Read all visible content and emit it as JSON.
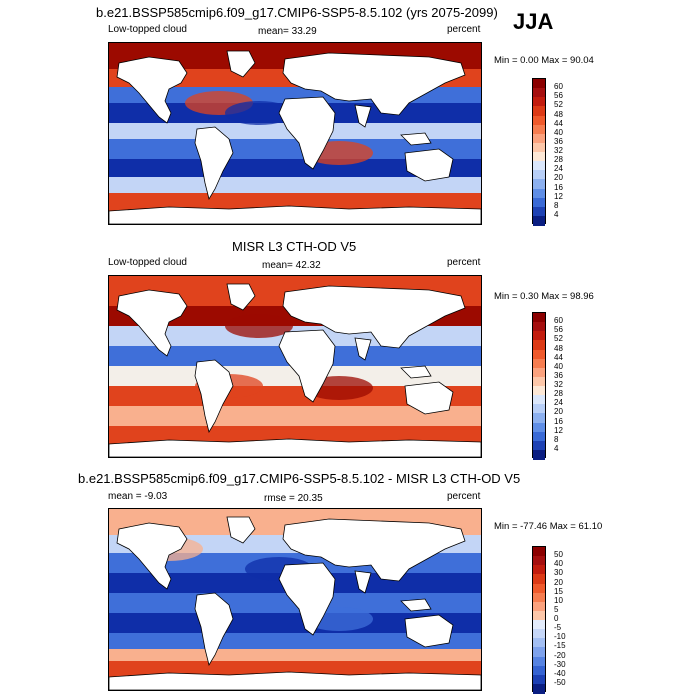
{
  "season": "JJA",
  "panels": [
    {
      "title": "b.e21.BSSP585cmip6.f09_g17.CMIP6-SSP5-8.5.102 (yrs 2075-2099)",
      "left_label": "Low-topped cloud",
      "center_label": "mean=  33.29",
      "right_label": "percent",
      "minmax": "Min =   0.00 Max =  90.04",
      "colorbar_labels": [
        "60",
        "56",
        "52",
        "48",
        "44",
        "40",
        "36",
        "32",
        "28",
        "24",
        "20",
        "16",
        "12",
        "8",
        "4"
      ],
      "colorbar_colors": [
        "#8b0000",
        "#a50f0f",
        "#c21c0e",
        "#dc3a16",
        "#ef5a2c",
        "#f67d50",
        "#fba27e",
        "#fdc7a9",
        "#fde8d6",
        "#dbe7fb",
        "#b8cff7",
        "#8cb0ef",
        "#5f8ee6",
        "#3a6ad6",
        "#1e42b4",
        "#0a1e82"
      ],
      "map_style": "model"
    },
    {
      "title": "MISR L3 CTH-OD V5",
      "left_label": "Low-topped cloud",
      "center_label": "mean=  42.32",
      "right_label": "percent",
      "minmax": "Min =   0.30 Max =  98.96",
      "colorbar_labels": [
        "60",
        "56",
        "52",
        "48",
        "44",
        "40",
        "36",
        "32",
        "28",
        "24",
        "20",
        "16",
        "12",
        "8",
        "4"
      ],
      "colorbar_colors": [
        "#8b0000",
        "#a50f0f",
        "#c21c0e",
        "#dc3a16",
        "#ef5a2c",
        "#f67d50",
        "#fba27e",
        "#fdc7a9",
        "#fde8d6",
        "#dbe7fb",
        "#b8cff7",
        "#8cb0ef",
        "#5f8ee6",
        "#3a6ad6",
        "#1e42b4",
        "#0a1e82"
      ],
      "map_style": "obs"
    },
    {
      "title": "b.e21.BSSP585cmip6.f09_g17.CMIP6-SSP5-8.5.102 - MISR L3 CTH-OD V5",
      "left_label": "mean =  -9.03",
      "center_label": "rmse =  20.35",
      "right_label": "percent",
      "minmax": "Min = -77.46 Max =  61.10",
      "colorbar_labels": [
        "50",
        "40",
        "30",
        "20",
        "15",
        "10",
        "5",
        "0",
        "-5",
        "-10",
        "-15",
        "-20",
        "-30",
        "-40",
        "-50"
      ],
      "colorbar_colors": [
        "#8b0000",
        "#a50f0f",
        "#c21c0e",
        "#dc3a16",
        "#ef5a2c",
        "#f67d50",
        "#fba27e",
        "#fdc7a9",
        "#e4ecfb",
        "#c6d7f8",
        "#a3bff3",
        "#7ea2ec",
        "#5683e2",
        "#3563d2",
        "#1c40b4",
        "#0a1e82"
      ],
      "map_style": "diff"
    }
  ],
  "style": {
    "land": "#ffffff",
    "coast": "#000000",
    "red_deep": "#9c0a00",
    "red_mid": "#e0431d",
    "red_light": "#f9b08e",
    "blue_deep": "#0f2ea8",
    "blue_mid": "#3f6fd9",
    "blue_light": "#c3d5f6",
    "neutral": "#f3efe9"
  }
}
